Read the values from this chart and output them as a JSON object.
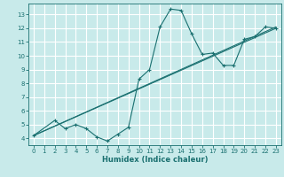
{
  "title": "",
  "xlabel": "Humidex (Indice chaleur)",
  "bg_color": "#c8eaea",
  "grid_color": "#ffffff",
  "line_color": "#1a7070",
  "xlim": [
    -0.5,
    23.5
  ],
  "ylim": [
    3.5,
    13.8
  ],
  "xticks": [
    0,
    1,
    2,
    3,
    4,
    5,
    6,
    7,
    8,
    9,
    10,
    11,
    12,
    13,
    14,
    15,
    16,
    17,
    18,
    19,
    20,
    21,
    22,
    23
  ],
  "yticks": [
    4,
    5,
    6,
    7,
    8,
    9,
    10,
    11,
    12,
    13
  ],
  "series1": {
    "x": [
      0,
      2,
      3,
      4,
      5,
      6,
      7,
      8,
      9,
      10,
      11,
      12,
      13,
      14,
      15,
      16,
      17,
      18,
      19,
      20,
      21,
      22,
      23
    ],
    "y": [
      4.2,
      5.3,
      4.7,
      5.0,
      4.7,
      4.1,
      3.8,
      4.3,
      4.8,
      8.3,
      9.0,
      12.1,
      13.4,
      13.3,
      11.6,
      10.1,
      10.2,
      9.3,
      9.3,
      11.2,
      11.4,
      12.1,
      12.0
    ]
  },
  "series2": {
    "x": [
      0,
      23
    ],
    "y": [
      4.2,
      12.0
    ]
  },
  "series3": {
    "x": [
      0,
      23
    ],
    "y": [
      4.2,
      12.1
    ]
  }
}
